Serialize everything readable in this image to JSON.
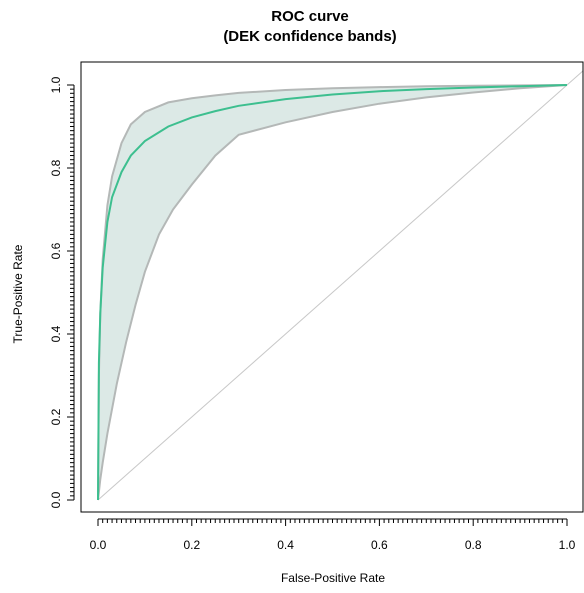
{
  "chart_data": {
    "type": "line",
    "title": "ROC curve",
    "subtitle": "(DEK confidence bands)",
    "xlabel": "False-Positive Rate",
    "ylabel": "True-Positive Rate",
    "xlim": [
      0,
      1
    ],
    "ylim": [
      0,
      1
    ],
    "grid": false,
    "x_ticks": [
      "0.0",
      "0.2",
      "0.4",
      "0.6",
      "0.8",
      "1.0"
    ],
    "y_ticks": [
      "0.0",
      "0.2",
      "0.4",
      "0.6",
      "0.8",
      "1.0"
    ],
    "colors": {
      "curve": "#3dbf8f",
      "band_fill": "#dce9e6",
      "band_edge": "#b4b8b7",
      "diagonal": "#c8c8c8"
    },
    "series": [
      {
        "role": "estimate",
        "x": [
          0,
          0.002,
          0.005,
          0.01,
          0.02,
          0.03,
          0.05,
          0.07,
          0.1,
          0.15,
          0.2,
          0.25,
          0.3,
          0.4,
          0.5,
          0.6,
          0.7,
          0.8,
          0.9,
          1.0
        ],
        "y": [
          0,
          0.33,
          0.45,
          0.56,
          0.67,
          0.73,
          0.79,
          0.83,
          0.865,
          0.9,
          0.922,
          0.937,
          0.95,
          0.966,
          0.977,
          0.985,
          0.99,
          0.994,
          0.997,
          1.0
        ]
      },
      {
        "role": "upper_band",
        "x": [
          0,
          0.002,
          0.005,
          0.01,
          0.02,
          0.03,
          0.05,
          0.07,
          0.1,
          0.15,
          0.2,
          0.25,
          0.3,
          0.4,
          0.5,
          0.6,
          0.7,
          0.8,
          0.9,
          1.0
        ],
        "y": [
          0,
          0.3,
          0.45,
          0.58,
          0.71,
          0.78,
          0.86,
          0.905,
          0.935,
          0.958,
          0.968,
          0.975,
          0.981,
          0.988,
          0.992,
          0.995,
          0.997,
          0.998,
          0.999,
          1.0
        ]
      },
      {
        "role": "lower_band",
        "x": [
          0,
          0.005,
          0.01,
          0.02,
          0.04,
          0.06,
          0.08,
          0.1,
          0.13,
          0.16,
          0.2,
          0.25,
          0.3,
          0.4,
          0.5,
          0.6,
          0.7,
          0.8,
          0.9,
          1.0
        ],
        "y": [
          0,
          0.05,
          0.09,
          0.16,
          0.28,
          0.38,
          0.47,
          0.55,
          0.64,
          0.7,
          0.76,
          0.83,
          0.88,
          0.91,
          0.935,
          0.955,
          0.97,
          0.982,
          0.992,
          1.0
        ]
      }
    ]
  }
}
